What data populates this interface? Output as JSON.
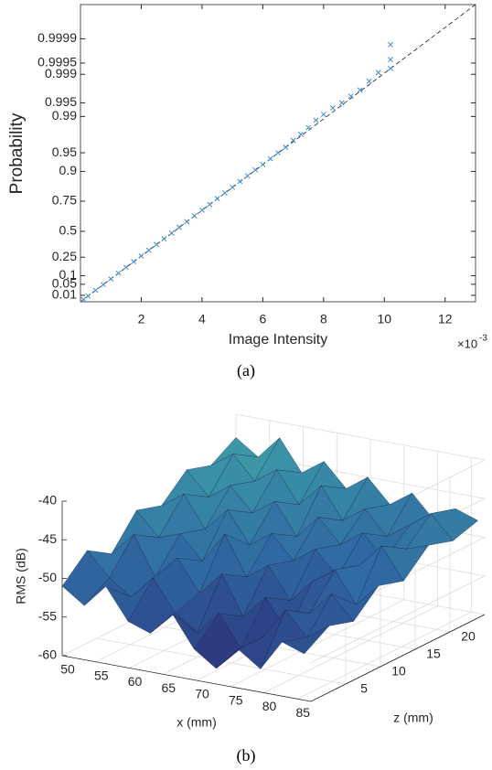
{
  "chart_data": [
    {
      "type": "probability",
      "yscale": "rayleigh",
      "xlabel": "Image Intensity",
      "ylabel": "Probability",
      "x_exponent_base": "×10",
      "x_exponent": "-3",
      "caption": "(a)",
      "xlim": [
        0,
        13
      ],
      "ylim": [
        0.0007,
        0.999992
      ],
      "xticks": [
        2,
        4,
        6,
        8,
        10,
        12
      ],
      "yticks": [
        0.01,
        0.05,
        0.1,
        0.25,
        0.5,
        0.75,
        0.9,
        0.95,
        0.99,
        0.995,
        0.999,
        0.9995,
        0.9999
      ],
      "series": [
        {
          "color": "#3d8bd1",
          "marker": "x",
          "x": [
            0.1,
            0.25,
            0.5,
            0.75,
            1,
            1.25,
            1.5,
            1.75,
            2,
            2.25,
            2.5,
            2.75,
            3,
            3.25,
            3.5,
            3.75,
            4,
            4.25,
            4.5,
            4.75,
            5,
            5.25,
            5.5,
            5.75,
            6,
            6.25,
            6.5,
            6.75,
            7,
            7.25,
            7.5,
            7.75,
            8,
            8.3,
            8.6,
            8.9,
            9.2,
            9.5,
            9.8,
            10.2,
            10.2,
            10.2
          ],
          "values": [
            0.0028,
            0.0085,
            0.0246,
            0.0486,
            0.08,
            0.118,
            0.162,
            0.21,
            0.262,
            0.316,
            0.372,
            0.428,
            0.483,
            0.538,
            0.589,
            0.639,
            0.685,
            0.727,
            0.767,
            0.801,
            0.832,
            0.86,
            0.884,
            0.905,
            0.922,
            0.937,
            0.95,
            0.96,
            0.97,
            0.977,
            0.983,
            0.988,
            0.991,
            0.9935,
            0.995,
            0.9965,
            0.9975,
            0.9985,
            0.9991,
            0.9993,
            0.9996,
            0.99985
          ]
        }
      ],
      "reference_line": {
        "x": [
          0,
          13
        ],
        "values": [
          0.0007,
          0.999992
        ],
        "color": "#333333",
        "dash": true
      }
    },
    {
      "type": "surface3d",
      "xlabel": "x (mm)",
      "zlabel": "z (mm)",
      "vlabel": "RMS (dB)",
      "caption": "(b)",
      "xlim": [
        50,
        87
      ],
      "zlim": [
        0,
        25
      ],
      "vlim": [
        -60,
        -40
      ],
      "xticks": [
        50,
        55,
        60,
        65,
        70,
        75,
        80,
        85
      ],
      "zticks": [
        5,
        10,
        15,
        20
      ],
      "vticks": [
        -60,
        -55,
        -50,
        -45,
        -40
      ],
      "colormap": [
        "#2b1c6b",
        "#2f6aa3",
        "#44b3a8"
      ],
      "x": [
        50,
        53.3,
        56.5,
        59.8,
        63.1,
        66.4,
        69.6,
        72.9,
        76.2,
        79.5,
        82.7,
        86
      ],
      "z": [
        0,
        3.6,
        7.1,
        10.7,
        14.3,
        17.9,
        21.4,
        25
      ],
      "values": [
        [
          -51,
          -53,
          -50,
          -54,
          -55,
          -52,
          -56,
          -58,
          -55,
          -57,
          -53,
          -54
        ],
        [
          -48,
          -51,
          -53,
          -50,
          -54,
          -56,
          -53,
          -57,
          -55,
          -51,
          -54,
          -52
        ],
        [
          -50,
          -47,
          -52,
          -49,
          -53,
          -50,
          -55,
          -52,
          -56,
          -53,
          -50,
          -53
        ],
        [
          -46,
          -49,
          -48,
          -51,
          -47,
          -52,
          -50,
          -54,
          -51,
          -49,
          -53,
          -50
        ],
        [
          -47,
          -45,
          -49,
          -46,
          -50,
          -48,
          -51,
          -49,
          -52,
          -50,
          -47,
          -51
        ],
        [
          -44,
          -47,
          -45,
          -48,
          -46,
          -50,
          -47,
          -50,
          -48,
          -51,
          -49,
          -48
        ],
        [
          -45,
          -43,
          -46,
          -44,
          -48,
          -45,
          -49,
          -47,
          -50,
          -48,
          -46,
          -49
        ],
        [
          -43,
          -45,
          -42,
          -46,
          -44,
          -47,
          -45,
          -48,
          -46,
          -49,
          -47,
          -48
        ]
      ]
    }
  ]
}
